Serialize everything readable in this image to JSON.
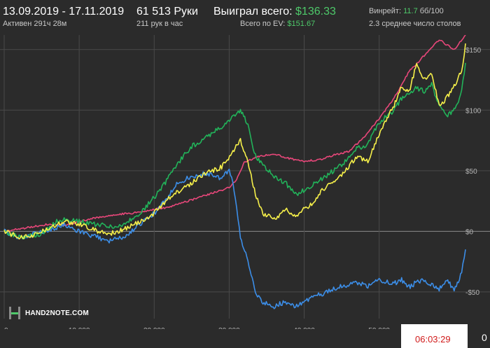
{
  "header": {
    "date_range": "13.09.2019 - 17.11.2019",
    "active_time": "Активен 291ч 28м",
    "hands_count": "61 513 Руки",
    "hands_per_hour": "211 рук в час",
    "won_label": "Выиграл всего:",
    "won_value": "$136.33",
    "ev_label": "Всего по EV:",
    "ev_value": "$151.67",
    "winrate_label": "Винрейт:",
    "winrate_value": "11.7",
    "winrate_unit": "бб/100",
    "tables_avg": "2.3 среднее число столов"
  },
  "logo": {
    "text": "HAND2NOTE.COM"
  },
  "footer": {
    "timer": "06:03:29",
    "side_value": "0"
  },
  "colors": {
    "background": "#2b2b2b",
    "grid": "#4a4a4a",
    "zero_line": "#8a8a8a",
    "pink": "#e8477a",
    "yellow": "#f6f04a",
    "green": "#22b35a",
    "blue": "#3c8ee8",
    "accent_green": "#4ec96a",
    "timer_red": "#d11a1a"
  },
  "chart_data": {
    "type": "line",
    "xlabel": "",
    "ylabel": "",
    "xlim": [
      0,
      61513
    ],
    "ylim": [
      -72,
      162
    ],
    "x_ticks": [
      0,
      10000,
      20000,
      30000,
      40000,
      50000
    ],
    "x_tick_labels": [
      "0",
      "10 000",
      "20 000",
      "30 000",
      "40 000",
      "50 000"
    ],
    "y_ticks": [
      150,
      100,
      50,
      0,
      -50
    ],
    "y_tick_labels": [
      "$150",
      "$100",
      "$50",
      "$0",
      "-$50"
    ],
    "grid": true,
    "series": [
      {
        "color": "pink",
        "x": [
          0,
          3000,
          6000,
          8000,
          10000,
          12000,
          15000,
          17000,
          20000,
          22000,
          25000,
          27000,
          30000,
          31000,
          32000,
          34000,
          36000,
          38000,
          40000,
          42000,
          44000,
          46000,
          48000,
          50000,
          52000,
          54000,
          56000,
          58000,
          60000,
          61513
        ],
        "y": [
          0,
          3,
          6,
          5,
          8,
          11,
          14,
          15,
          18,
          20,
          26,
          30,
          36,
          43,
          57,
          62,
          64,
          60,
          58,
          59,
          63,
          66,
          78,
          93,
          110,
          132,
          145,
          158,
          150,
          162
        ]
      },
      {
        "color": "yellow",
        "x": [
          0,
          2000,
          3500,
          5000,
          7000,
          8000,
          10000,
          12000,
          14000,
          16000,
          18000,
          20000,
          21500,
          23000,
          25000,
          27000,
          29000,
          30500,
          31500,
          32500,
          33500,
          34500,
          36000,
          37500,
          39000,
          41000,
          43000,
          45000,
          47000,
          48500,
          50000,
          52000,
          53000,
          54000,
          55000,
          56000,
          57000,
          58000,
          59000,
          60000,
          61000,
          61513
        ],
        "y": [
          0,
          -5,
          -4,
          0,
          5,
          8,
          6,
          1,
          -2,
          2,
          8,
          15,
          25,
          32,
          40,
          48,
          53,
          66,
          75,
          58,
          30,
          15,
          10,
          18,
          13,
          23,
          38,
          46,
          62,
          58,
          80,
          104,
          120,
          115,
          138,
          125,
          131,
          103,
          110,
          120,
          132,
          155
        ]
      },
      {
        "color": "green",
        "x": [
          0,
          2000,
          3500,
          5000,
          7000,
          8000,
          10000,
          12000,
          14000,
          16000,
          18000,
          20000,
          21500,
          23000,
          25000,
          27000,
          29000,
          30500,
          31500,
          32500,
          33500,
          34500,
          36000,
          37500,
          39000,
          41000,
          43000,
          45000,
          47000,
          48500,
          50000,
          52000,
          53000,
          54000,
          55000,
          56000,
          57000,
          58000,
          59000,
          60000,
          61000,
          61513
        ],
        "y": [
          0,
          -5,
          -4,
          -2,
          8,
          10,
          8,
          6,
          4,
          6,
          14,
          28,
          40,
          55,
          70,
          78,
          86,
          95,
          100,
          88,
          62,
          55,
          45,
          40,
          30,
          38,
          46,
          55,
          68,
          72,
          90,
          100,
          110,
          115,
          118,
          116,
          121,
          104,
          95,
          100,
          115,
          139
        ]
      },
      {
        "color": "blue",
        "x": [
          0,
          2000,
          3500,
          5000,
          7000,
          8000,
          10000,
          12000,
          14000,
          16000,
          18000,
          20000,
          21500,
          23000,
          25000,
          27000,
          29000,
          30000,
          30500,
          31000,
          31500,
          32500,
          33500,
          34500,
          36000,
          37500,
          39000,
          41000,
          43000,
          45000,
          47000,
          48500,
          50000,
          52000,
          53000,
          54000,
          55000,
          56000,
          57000,
          58000,
          59000,
          60000,
          61000,
          61513
        ],
        "y": [
          0,
          -5,
          -3,
          0,
          3,
          6,
          0,
          -4,
          -8,
          -4,
          5,
          15,
          25,
          40,
          45,
          48,
          44,
          50,
          42,
          20,
          -5,
          -25,
          -50,
          -58,
          -62,
          -58,
          -62,
          -55,
          -50,
          -45,
          -43,
          -45,
          -40,
          -43,
          -40,
          -46,
          -42,
          -40,
          -44,
          -48,
          -40,
          -48,
          -35,
          -15
        ]
      }
    ]
  }
}
